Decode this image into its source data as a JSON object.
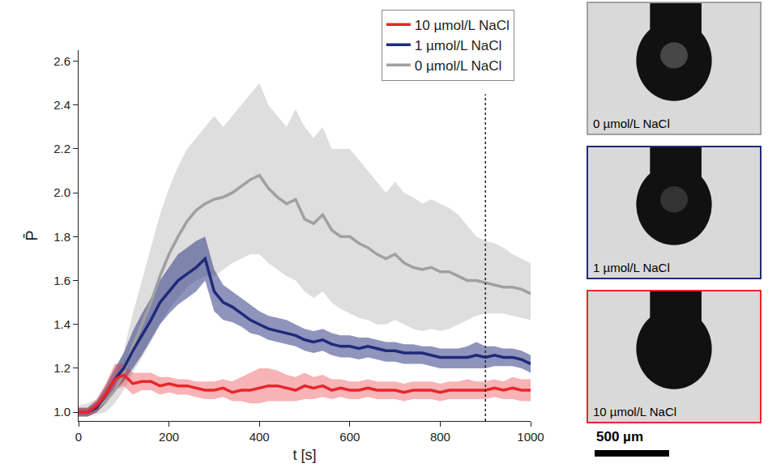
{
  "chart_data": {
    "type": "line",
    "x_title": "t [s]",
    "y_title": "P̄",
    "xlim": [
      0,
      1000
    ],
    "xticks": [
      0,
      200,
      400,
      600,
      800,
      1000
    ],
    "ylim": [
      0.96,
      2.65
    ],
    "yticks": [
      {
        "value": 1.0,
        "label": "1.0"
      },
      {
        "value": 1.2,
        "label": "1.2"
      },
      {
        "value": 1.4,
        "label": "1.4"
      },
      {
        "value": 1.6,
        "label": "1.6"
      },
      {
        "value": 1.8,
        "label": "1.8"
      },
      {
        "value": 2.0,
        "label": "2.0"
      },
      {
        "value": 2.2,
        "label": "2.2"
      },
      {
        "value": 2.4,
        "label": "2.4"
      },
      {
        "value": 2.6,
        "label": "2.6"
      }
    ],
    "grid": false,
    "legend": "top right",
    "vertical_line": {
      "x": 900,
      "y": [
        0.96,
        2.45
      ],
      "line_style": "dot"
    },
    "x": [
      0,
      20,
      40,
      60,
      80,
      100,
      120,
      140,
      160,
      180,
      200,
      220,
      240,
      260,
      280,
      300,
      320,
      340,
      360,
      380,
      400,
      420,
      440,
      460,
      480,
      500,
      520,
      540,
      560,
      580,
      600,
      620,
      640,
      660,
      680,
      700,
      720,
      740,
      760,
      780,
      800,
      820,
      840,
      860,
      880,
      900,
      920,
      940,
      960,
      980,
      1000
    ],
    "series": [
      {
        "name": "0 µmol/L NaCl",
        "color": "#a0a0a0",
        "values": [
          1.0,
          1.0,
          1.02,
          1.05,
          1.1,
          1.18,
          1.3,
          1.4,
          1.5,
          1.62,
          1.72,
          1.8,
          1.87,
          1.92,
          1.95,
          1.97,
          1.98,
          2.0,
          2.03,
          2.06,
          2.08,
          2.02,
          1.98,
          1.95,
          1.97,
          1.88,
          1.86,
          1.9,
          1.83,
          1.8,
          1.8,
          1.77,
          1.75,
          1.72,
          1.7,
          1.72,
          1.68,
          1.66,
          1.65,
          1.66,
          1.64,
          1.64,
          1.62,
          1.6,
          1.6,
          1.59,
          1.58,
          1.57,
          1.57,
          1.56,
          1.54
        ],
        "upper": [
          1.03,
          1.04,
          1.06,
          1.1,
          1.16,
          1.28,
          1.45,
          1.6,
          1.75,
          1.9,
          2.02,
          2.12,
          2.2,
          2.25,
          2.3,
          2.35,
          2.3,
          2.35,
          2.4,
          2.45,
          2.5,
          2.4,
          2.35,
          2.3,
          2.38,
          2.3,
          2.25,
          2.3,
          2.2,
          2.2,
          2.2,
          2.15,
          2.1,
          2.05,
          2.0,
          2.05,
          2.0,
          1.98,
          1.95,
          1.97,
          1.95,
          1.93,
          1.9,
          1.85,
          1.8,
          1.78,
          1.77,
          1.75,
          1.72,
          1.7,
          1.68
        ],
        "lower": [
          0.98,
          0.98,
          0.99,
          1.0,
          1.04,
          1.1,
          1.18,
          1.25,
          1.32,
          1.4,
          1.47,
          1.52,
          1.57,
          1.6,
          1.62,
          1.62,
          1.65,
          1.68,
          1.7,
          1.72,
          1.72,
          1.68,
          1.65,
          1.62,
          1.6,
          1.55,
          1.52,
          1.55,
          1.5,
          1.47,
          1.45,
          1.43,
          1.42,
          1.4,
          1.4,
          1.42,
          1.4,
          1.38,
          1.37,
          1.38,
          1.37,
          1.38,
          1.4,
          1.42,
          1.44,
          1.45,
          1.45,
          1.45,
          1.44,
          1.43,
          1.42
        ]
      },
      {
        "name": "1 µmol/L NaCl",
        "color": "#1f2a7a",
        "values": [
          1.0,
          1.0,
          1.02,
          1.08,
          1.15,
          1.2,
          1.28,
          1.35,
          1.42,
          1.5,
          1.55,
          1.6,
          1.63,
          1.66,
          1.7,
          1.55,
          1.5,
          1.48,
          1.45,
          1.42,
          1.4,
          1.38,
          1.37,
          1.36,
          1.35,
          1.33,
          1.32,
          1.33,
          1.31,
          1.3,
          1.3,
          1.29,
          1.3,
          1.29,
          1.28,
          1.28,
          1.27,
          1.27,
          1.27,
          1.26,
          1.25,
          1.25,
          1.25,
          1.25,
          1.26,
          1.25,
          1.26,
          1.25,
          1.25,
          1.24,
          1.22
        ],
        "upper": [
          1.02,
          1.02,
          1.05,
          1.12,
          1.2,
          1.27,
          1.37,
          1.45,
          1.52,
          1.6,
          1.66,
          1.72,
          1.75,
          1.78,
          1.8,
          1.65,
          1.58,
          1.55,
          1.52,
          1.49,
          1.46,
          1.44,
          1.43,
          1.42,
          1.4,
          1.38,
          1.37,
          1.38,
          1.36,
          1.35,
          1.35,
          1.34,
          1.34,
          1.33,
          1.32,
          1.32,
          1.31,
          1.31,
          1.3,
          1.3,
          1.29,
          1.29,
          1.29,
          1.3,
          1.32,
          1.3,
          1.3,
          1.29,
          1.29,
          1.28,
          1.26
        ],
        "lower": [
          0.98,
          0.98,
          1.0,
          1.04,
          1.1,
          1.14,
          1.2,
          1.26,
          1.33,
          1.4,
          1.45,
          1.49,
          1.52,
          1.55,
          1.6,
          1.46,
          1.42,
          1.41,
          1.39,
          1.36,
          1.35,
          1.33,
          1.32,
          1.31,
          1.3,
          1.28,
          1.27,
          1.28,
          1.26,
          1.25,
          1.25,
          1.24,
          1.25,
          1.24,
          1.23,
          1.23,
          1.22,
          1.22,
          1.22,
          1.21,
          1.2,
          1.2,
          1.2,
          1.2,
          1.2,
          1.2,
          1.21,
          1.21,
          1.21,
          1.2,
          1.18
        ]
      },
      {
        "name": "10 µmol/L NaCl",
        "color": "#e8262a",
        "values": [
          1.0,
          1.0,
          1.03,
          1.08,
          1.15,
          1.17,
          1.13,
          1.14,
          1.14,
          1.12,
          1.13,
          1.12,
          1.12,
          1.11,
          1.1,
          1.1,
          1.11,
          1.09,
          1.1,
          1.1,
          1.11,
          1.12,
          1.12,
          1.11,
          1.1,
          1.12,
          1.11,
          1.12,
          1.1,
          1.11,
          1.1,
          1.1,
          1.11,
          1.1,
          1.1,
          1.1,
          1.09,
          1.1,
          1.1,
          1.1,
          1.09,
          1.1,
          1.1,
          1.1,
          1.1,
          1.1,
          1.11,
          1.1,
          1.11,
          1.1,
          1.1
        ],
        "upper": [
          1.02,
          1.02,
          1.06,
          1.13,
          1.22,
          1.22,
          1.18,
          1.18,
          1.18,
          1.16,
          1.16,
          1.15,
          1.15,
          1.14,
          1.14,
          1.14,
          1.15,
          1.14,
          1.16,
          1.18,
          1.2,
          1.2,
          1.19,
          1.17,
          1.16,
          1.18,
          1.16,
          1.17,
          1.15,
          1.15,
          1.14,
          1.14,
          1.15,
          1.14,
          1.14,
          1.14,
          1.13,
          1.14,
          1.14,
          1.14,
          1.13,
          1.14,
          1.14,
          1.15,
          1.14,
          1.14,
          1.15,
          1.14,
          1.16,
          1.15,
          1.15
        ],
        "lower": [
          0.98,
          0.98,
          1.0,
          1.04,
          1.1,
          1.12,
          1.08,
          1.1,
          1.1,
          1.08,
          1.09,
          1.08,
          1.08,
          1.07,
          1.06,
          1.06,
          1.07,
          1.05,
          1.05,
          1.04,
          1.04,
          1.05,
          1.05,
          1.05,
          1.05,
          1.06,
          1.06,
          1.07,
          1.06,
          1.07,
          1.06,
          1.06,
          1.07,
          1.06,
          1.06,
          1.06,
          1.05,
          1.06,
          1.06,
          1.06,
          1.05,
          1.06,
          1.06,
          1.06,
          1.06,
          1.06,
          1.07,
          1.06,
          1.06,
          1.05,
          1.05
        ]
      }
    ],
    "panels": [
      {
        "label": "0 µmol/L NaCl",
        "series": 0
      },
      {
        "label": "1 µmol/L NaCl",
        "series": 1
      },
      {
        "label": "10 µmol/L NaCl",
        "series": 2
      }
    ],
    "scale_bar": {
      "label": "500 µm"
    }
  }
}
